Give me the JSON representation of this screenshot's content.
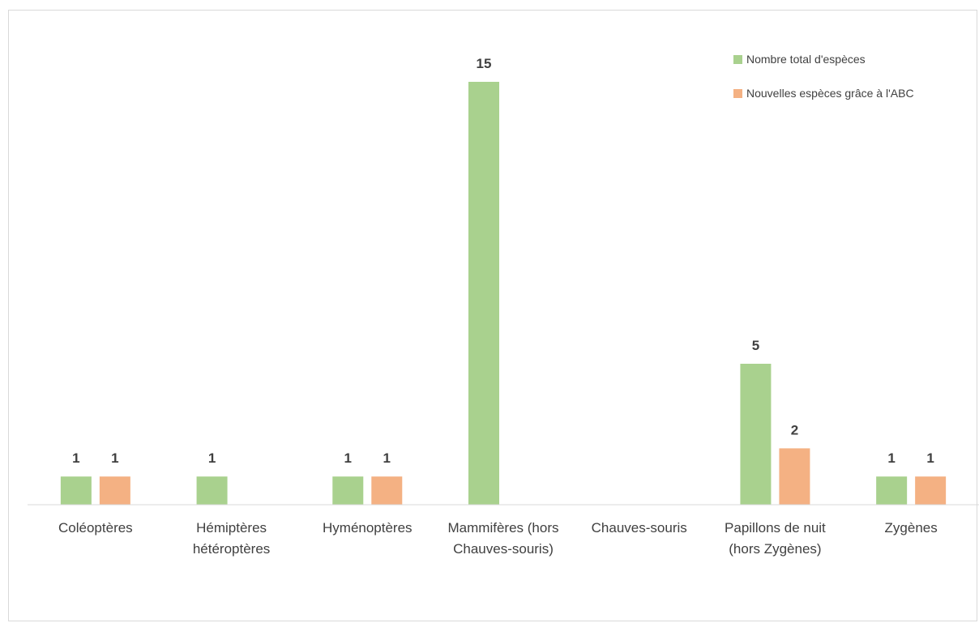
{
  "chart_data": {
    "type": "bar",
    "categories": [
      [
        "Coléoptères"
      ],
      [
        "Hémiptères",
        "hétéroptères"
      ],
      [
        "Hyménoptères"
      ],
      [
        "Mammifères (hors",
        "Chauves-souris)"
      ],
      [
        "Chauves-souris"
      ],
      [
        "Papillons de nuit",
        "(hors Zygènes)"
      ],
      [
        "Zygènes"
      ]
    ],
    "series": [
      {
        "name": "Nombre total d'espèces",
        "color": "#a9d18e",
        "values": [
          1,
          1,
          1,
          15,
          null,
          5,
          1
        ]
      },
      {
        "name": "Nouvelles espèces grâce à l'ABC",
        "color": "#f4b183",
        "values": [
          1,
          null,
          1,
          null,
          null,
          2,
          1
        ]
      }
    ],
    "ylim": [
      0,
      15
    ],
    "grid": false,
    "legend_position": "top-right",
    "data_labels": true
  }
}
